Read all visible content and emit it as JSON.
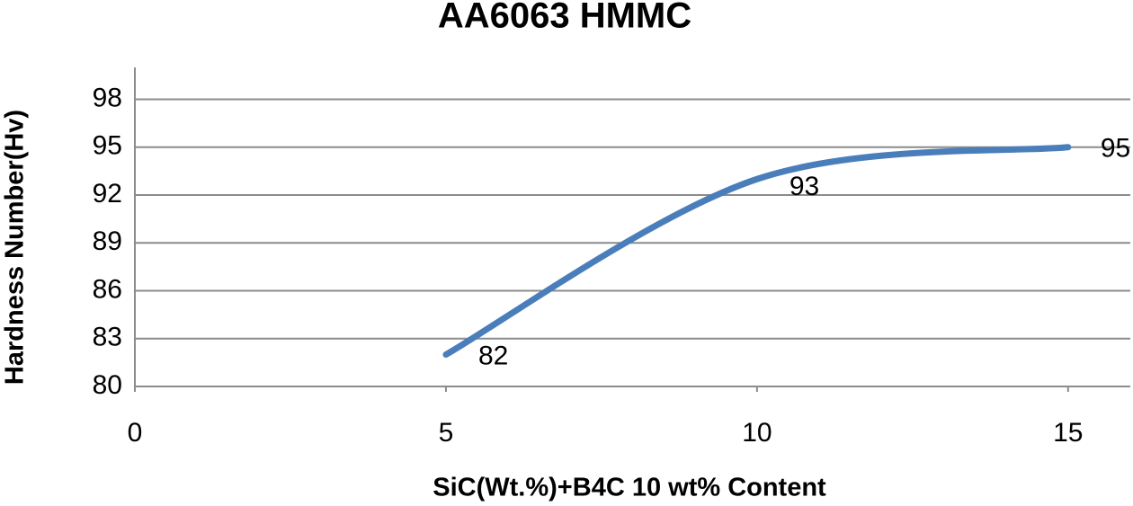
{
  "chart_data": {
    "type": "line",
    "title": "AA6063 HMMC",
    "x_label": "SiC(Wt.%)+B4C 10 wt% Content",
    "y_label": "Hardness Number(Hv)",
    "x": [
      5,
      10,
      15
    ],
    "series": [
      {
        "name": "Hardness",
        "color": "#4a7ebb",
        "values": [
          82,
          93,
          95
        ]
      }
    ],
    "xlim": [
      0,
      16
    ],
    "xticks": [
      0,
      5,
      10,
      15
    ],
    "ylim": [
      80,
      100
    ],
    "yticks": [
      80,
      83,
      86,
      89,
      92,
      95,
      98
    ],
    "grid": true,
    "smooth": true,
    "data_labels": true
  }
}
